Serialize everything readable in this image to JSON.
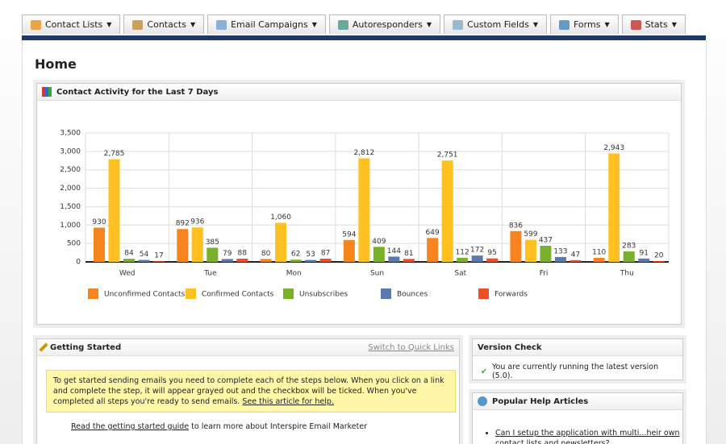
{
  "nav": [
    "Contact Lists",
    "Contacts",
    "Email Campaigns",
    "Autoresponders",
    "Custom Fields",
    "Forms",
    "Stats"
  ],
  "page_title": "Home",
  "chart_panel": {
    "title": "Contact Activity for the Last 7 Days"
  },
  "chart_data": {
    "type": "bar",
    "categories": [
      "Wed",
      "Tue",
      "Mon",
      "Sun",
      "Sat",
      "Fri",
      "Thu"
    ],
    "series": [
      {
        "name": "Unconfirmed Contacts",
        "color": "#f7841f",
        "values": [
          930,
          892,
          80,
          594,
          649,
          836,
          110
        ]
      },
      {
        "name": "Confirmed Contacts",
        "color": "#ffc021",
        "values": [
          2785,
          936,
          1060,
          2812,
          2751,
          599,
          2943
        ],
        "value_labels": [
          "2,785",
          "936",
          "1,060",
          "2,812",
          "2,751",
          "599",
          "2,943"
        ]
      },
      {
        "name": "Unsubscribes",
        "color": "#7bb02a",
        "values": [
          84,
          385,
          62,
          409,
          112,
          437,
          283
        ]
      },
      {
        "name": "Bounces",
        "color": "#5b79b0",
        "values": [
          54,
          79,
          53,
          144,
          172,
          133,
          91
        ]
      },
      {
        "name": "Forwards",
        "color": "#f04e23",
        "values": [
          17,
          88,
          87,
          81,
          95,
          47,
          20
        ]
      }
    ],
    "ylim": [
      0,
      3500
    ],
    "yticks": [
      0,
      500,
      {
        "value": 1000,
        "label": "1,000"
      },
      {
        "value": 1500,
        "label": "1,500"
      },
      {
        "value": 2000,
        "label": "2,000"
      },
      {
        "value": 2500,
        "label": "2,500"
      },
      {
        "value": 3000,
        "label": "3,000"
      },
      {
        "value": 3500,
        "label": "3,500"
      }
    ],
    "grid": true,
    "legend": "bottom"
  },
  "getting_started": {
    "title": "Getting Started",
    "switch_link": "Switch to Quick Links",
    "notice": "To get started sending emails you need to complete each of the steps below. When you click on a link and complete the step, it will appear grayed out and the checkbox will be ticked. When you've completed all steps you're ready to send emails.",
    "notice_link": "See this article for help.",
    "guide_link": "Read the getting started guide",
    "guide_text": "to learn more about Interspire Email Marketer"
  },
  "version_check": {
    "title": "Version Check",
    "message": "You are currently running the latest version (5.0)."
  },
  "help_articles": {
    "title": "Popular Help Articles",
    "items": [
      "Can I setup the application with multi...heir own contact lists and newsletters?"
    ]
  }
}
